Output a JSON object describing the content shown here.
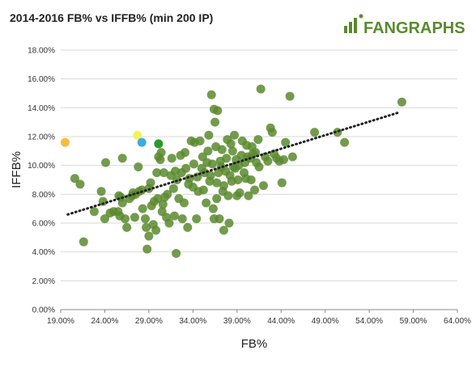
{
  "header": {
    "title": "2014-2016 FB% vs IFFB% (min 200 IP)",
    "logo_text": "FANGRAPHS"
  },
  "colors": {
    "dot": "#5a8a2e",
    "highlight_orange": "#f6bd3c",
    "highlight_yellow": "#f4f25a",
    "highlight_blue": "#3fa9e0",
    "highlight_green": "#2a9a2a",
    "trend": "#222222"
  },
  "chart_data": {
    "type": "scatter",
    "title": "2014-2016 FB% vs IFFB% (min 200 IP)",
    "xlabel": "FB%",
    "ylabel": "IFFB%",
    "xlim": [
      19,
      64
    ],
    "ylim": [
      0,
      18
    ],
    "x_ticks": [
      "19.00%",
      "24.00%",
      "29.00%",
      "34.00%",
      "39.00%",
      "44.00%",
      "49.00%",
      "54.00%",
      "59.00%",
      "64.00%"
    ],
    "y_ticks": [
      "0.00%",
      "2.00%",
      "4.00%",
      "6.00%",
      "8.00%",
      "10.00%",
      "12.00%",
      "14.00%",
      "16.00%",
      "18.00%"
    ],
    "grid": {
      "horizontal": true,
      "vertical": false
    },
    "trendline": {
      "style": "dotted",
      "from": [
        19.8,
        6.6
      ],
      "to": [
        57.5,
        13.7
      ]
    },
    "highlighted": [
      {
        "x": 19.5,
        "y": 11.6,
        "color": "#f6bd3c"
      },
      {
        "x": 27.7,
        "y": 12.1,
        "color": "#f4f25a"
      },
      {
        "x": 28.2,
        "y": 11.6,
        "color": "#3fa9e0"
      },
      {
        "x": 30.1,
        "y": 11.5,
        "color": "#2a9a2a"
      }
    ],
    "points": [
      [
        20.6,
        9.1
      ],
      [
        21.2,
        8.7
      ],
      [
        21.6,
        4.7
      ],
      [
        22.8,
        6.8
      ],
      [
        23.6,
        8.2
      ],
      [
        23.8,
        7.5
      ],
      [
        24.0,
        6.3
      ],
      [
        24.1,
        10.2
      ],
      [
        24.6,
        6.7
      ],
      [
        25.0,
        6.8
      ],
      [
        25.5,
        6.8
      ],
      [
        25.6,
        7.9
      ],
      [
        25.7,
        6.5
      ],
      [
        25.8,
        7.8
      ],
      [
        26.0,
        7.4
      ],
      [
        26.0,
        10.5
      ],
      [
        26.3,
        6.3
      ],
      [
        26.5,
        5.7
      ],
      [
        26.8,
        7.7
      ],
      [
        27.1,
        7.9
      ],
      [
        27.2,
        8.1
      ],
      [
        27.4,
        6.4
      ],
      [
        27.5,
        8.0
      ],
      [
        27.8,
        9.9
      ],
      [
        27.9,
        8.2
      ],
      [
        28.2,
        8.3
      ],
      [
        28.3,
        7.0
      ],
      [
        28.6,
        6.3
      ],
      [
        28.7,
        5.7
      ],
      [
        28.8,
        4.2
      ],
      [
        29.0,
        5.1
      ],
      [
        29.0,
        8.4
      ],
      [
        29.2,
        8.8
      ],
      [
        29.3,
        7.2
      ],
      [
        29.5,
        5.9
      ],
      [
        29.6,
        7.5
      ],
      [
        29.8,
        5.5
      ],
      [
        29.9,
        9.5
      ],
      [
        30.0,
        7.7
      ],
      [
        30.1,
        10.6
      ],
      [
        30.3,
        10.4
      ],
      [
        30.4,
        10.9
      ],
      [
        30.5,
        6.8
      ],
      [
        30.6,
        7.3
      ],
      [
        30.7,
        9.5
      ],
      [
        30.8,
        7.8
      ],
      [
        31.0,
        6.4
      ],
      [
        31.1,
        8.0
      ],
      [
        31.3,
        6.0
      ],
      [
        31.5,
        9.3
      ],
      [
        31.6,
        10.5
      ],
      [
        31.8,
        8.4
      ],
      [
        31.9,
        6.5
      ],
      [
        32.0,
        9.6
      ],
      [
        32.1,
        3.9
      ],
      [
        32.2,
        9.0
      ],
      [
        32.4,
        7.7
      ],
      [
        32.6,
        10.7
      ],
      [
        32.7,
        9.5
      ],
      [
        32.8,
        6.3
      ],
      [
        33.0,
        7.4
      ],
      [
        33.1,
        10.9
      ],
      [
        33.2,
        9.8
      ],
      [
        33.4,
        5.7
      ],
      [
        33.5,
        8.7
      ],
      [
        33.6,
        9.1
      ],
      [
        33.8,
        11.7
      ],
      [
        34.0,
        8.5
      ],
      [
        34.1,
        10.1
      ],
      [
        34.2,
        11.6
      ],
      [
        34.4,
        6.3
      ],
      [
        34.5,
        9.2
      ],
      [
        34.6,
        8.2
      ],
      [
        34.8,
        11.7
      ],
      [
        35.0,
        9.8
      ],
      [
        35.1,
        10.6
      ],
      [
        35.2,
        8.3
      ],
      [
        35.3,
        9.5
      ],
      [
        35.5,
        7.4
      ],
      [
        35.6,
        10.2
      ],
      [
        35.7,
        11.0
      ],
      [
        35.8,
        12.1
      ],
      [
        35.9,
        8.9
      ],
      [
        36.0,
        9.3
      ],
      [
        36.1,
        14.9
      ],
      [
        36.2,
        10.1
      ],
      [
        36.3,
        7.0
      ],
      [
        36.4,
        13.9
      ],
      [
        36.4,
        6.3
      ],
      [
        36.5,
        13.0
      ],
      [
        36.6,
        11.3
      ],
      [
        36.7,
        8.8
      ],
      [
        36.7,
        7.7
      ],
      [
        36.8,
        13.8
      ],
      [
        36.9,
        9.5
      ],
      [
        37.0,
        6.3
      ],
      [
        37.1,
        10.3
      ],
      [
        37.2,
        9.9
      ],
      [
        37.3,
        11.1
      ],
      [
        37.4,
        8.2
      ],
      [
        37.5,
        8.6
      ],
      [
        37.5,
        5.5
      ],
      [
        37.7,
        9.6
      ],
      [
        37.8,
        10.5
      ],
      [
        37.9,
        11.8
      ],
      [
        38.0,
        7.9
      ],
      [
        38.1,
        6.0
      ],
      [
        38.2,
        9.3
      ],
      [
        38.3,
        11.5
      ],
      [
        38.4,
        8.9
      ],
      [
        38.5,
        11.0
      ],
      [
        38.6,
        9.9
      ],
      [
        38.7,
        12.1
      ],
      [
        38.8,
        9.8
      ],
      [
        38.9,
        10.4
      ],
      [
        39.0,
        7.9
      ],
      [
        39.1,
        9.0
      ],
      [
        39.2,
        10.0
      ],
      [
        39.3,
        8.1
      ],
      [
        39.5,
        10.7
      ],
      [
        39.6,
        11.7
      ],
      [
        39.8,
        9.5
      ],
      [
        39.9,
        10.2
      ],
      [
        40.0,
        9.1
      ],
      [
        40.1,
        11.4
      ],
      [
        40.2,
        10.6
      ],
      [
        40.3,
        7.9
      ],
      [
        40.5,
        10.5
      ],
      [
        40.6,
        9.0
      ],
      [
        40.7,
        11.3
      ],
      [
        40.8,
        10.8
      ],
      [
        41.0,
        8.3
      ],
      [
        41.1,
        10.9
      ],
      [
        41.2,
        10.2
      ],
      [
        41.4,
        11.8
      ],
      [
        41.5,
        9.9
      ],
      [
        41.7,
        15.3
      ],
      [
        42.0,
        8.6
      ],
      [
        42.2,
        10.6
      ],
      [
        42.5,
        10.3
      ],
      [
        42.8,
        12.6
      ],
      [
        43.0,
        12.3
      ],
      [
        43.2,
        10.8
      ],
      [
        43.5,
        10.5
      ],
      [
        43.8,
        10.3
      ],
      [
        44.1,
        8.8
      ],
      [
        44.3,
        10.4
      ],
      [
        44.5,
        11.6
      ],
      [
        45.0,
        14.8
      ],
      [
        45.3,
        10.6
      ],
      [
        47.8,
        12.3
      ],
      [
        50.4,
        12.3
      ],
      [
        51.2,
        11.6
      ],
      [
        57.7,
        14.4
      ]
    ]
  }
}
